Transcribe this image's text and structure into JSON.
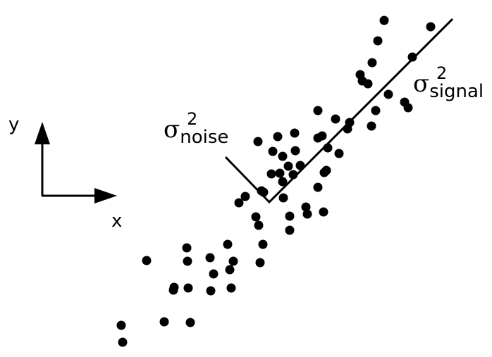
{
  "axes_indicator": {
    "y_label": "y",
    "x_label": "x"
  },
  "annotations": {
    "noise": {
      "symbol": "σ",
      "superscript": "2",
      "subscript": "noise"
    },
    "signal": {
      "symbol": "σ",
      "superscript": "2",
      "subscript": "signal"
    }
  },
  "colors": {
    "ink": "#000000",
    "background": "#ffffff"
  }
}
